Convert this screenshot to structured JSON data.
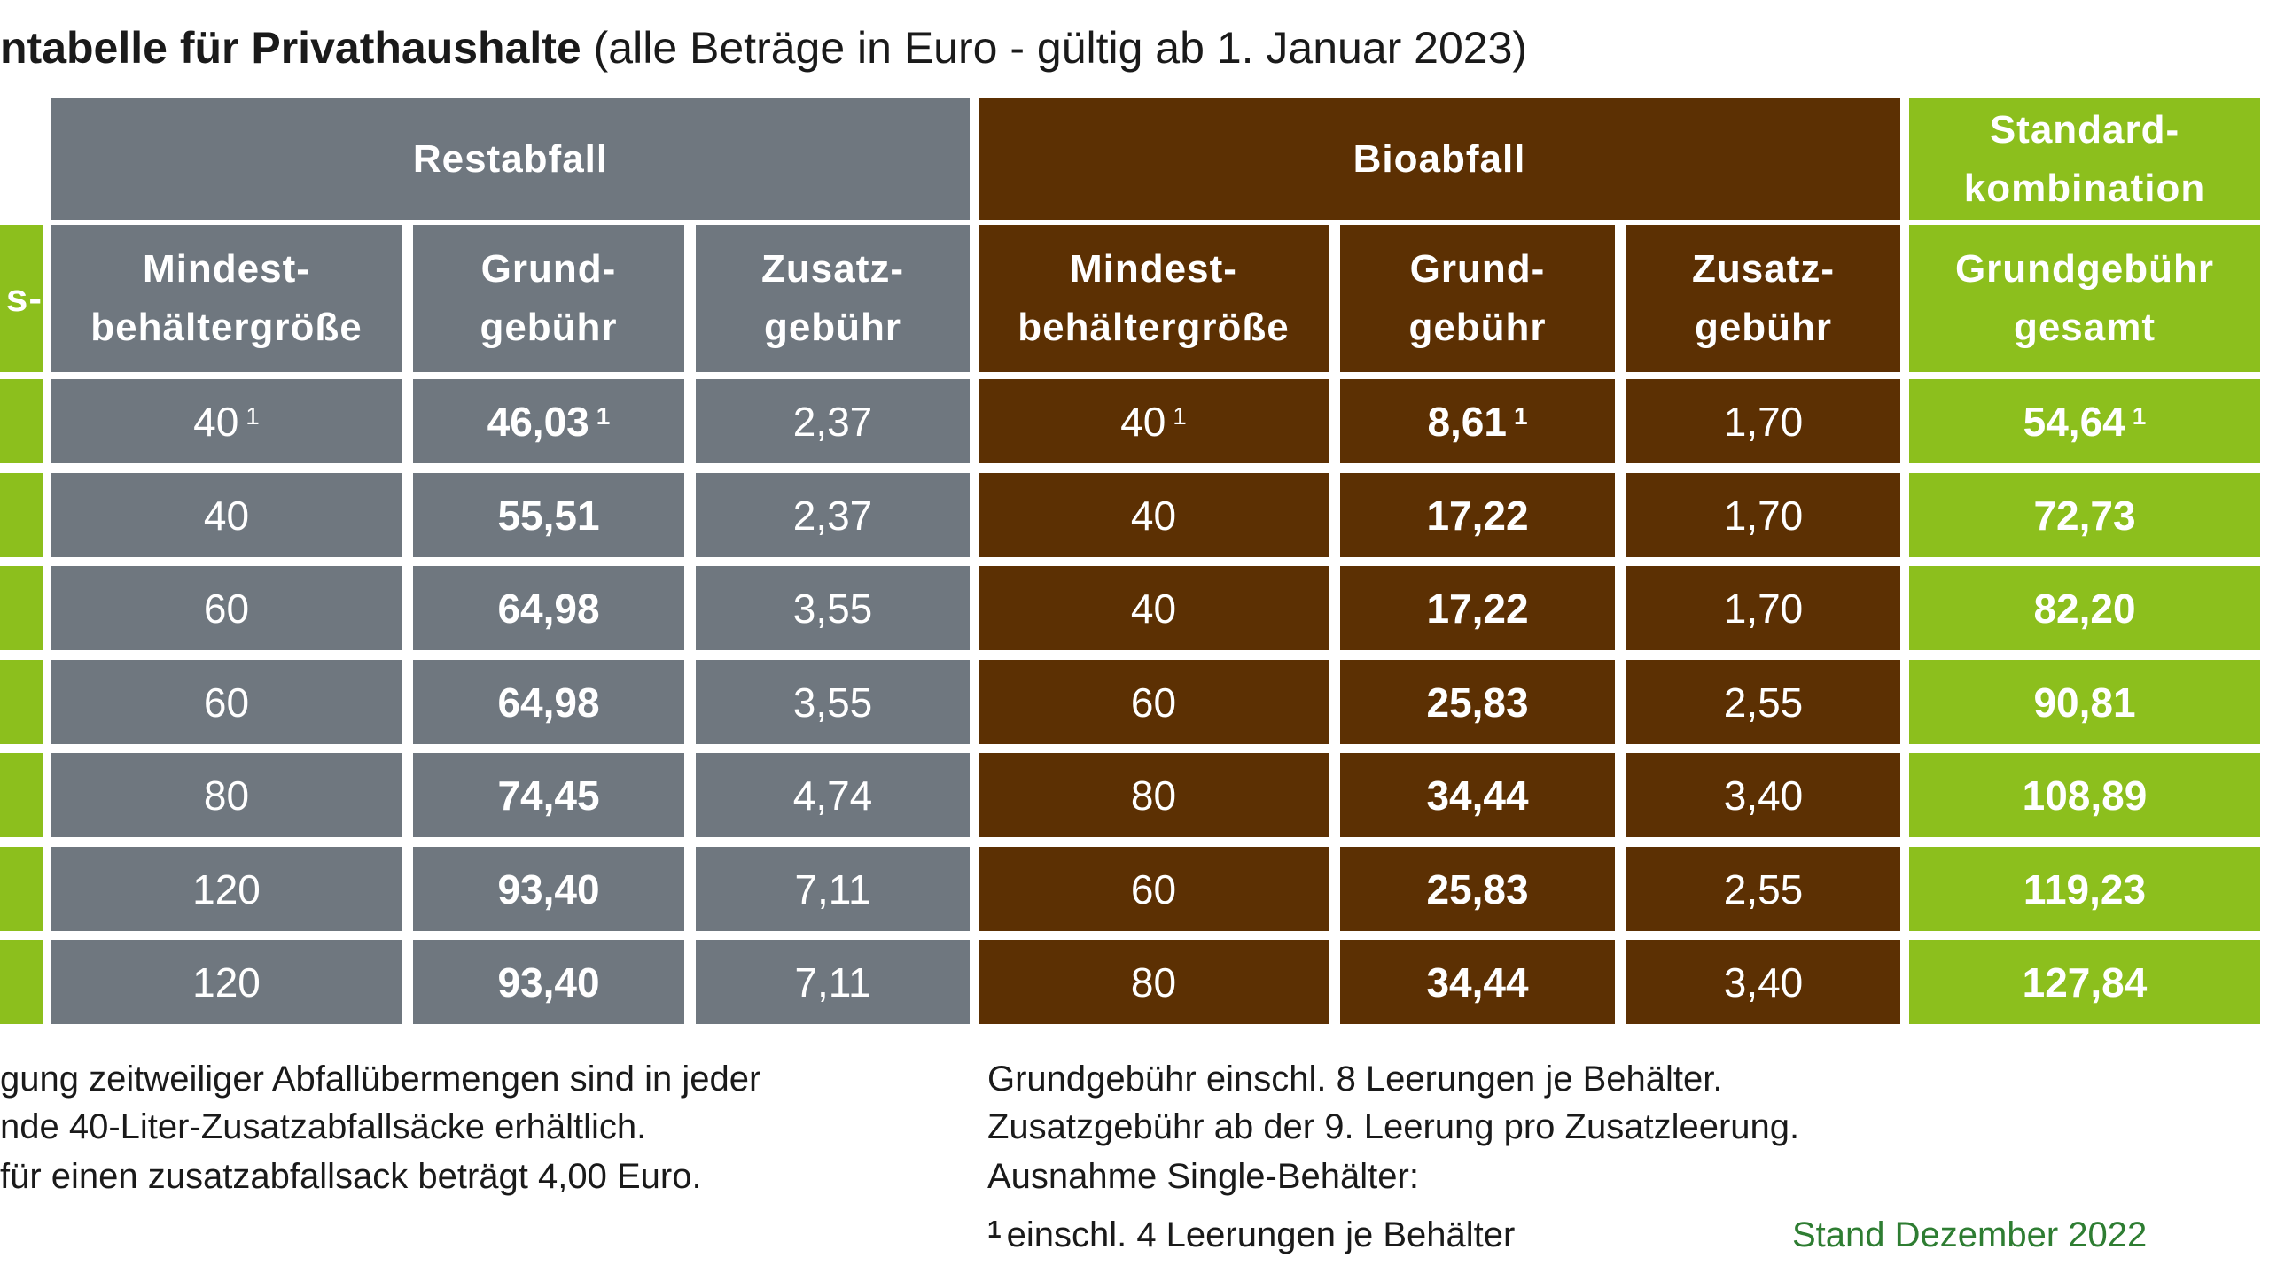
{
  "title": {
    "bold": "ntabelle für Privathaushalte",
    "normal": " (alle Beträge in Euro - gültig ab 1. Januar 2023)"
  },
  "groups": {
    "restabfall": "Restabfall",
    "bioabfall": "Bioabfall",
    "standard_line1": "Standard-",
    "standard_line2": "kombination"
  },
  "columns": {
    "left_partial": "s-",
    "rest_min_1": "Mindest-",
    "rest_min_2": "behältergröße",
    "rest_grund_1": "Grund-",
    "rest_grund_2": "gebühr",
    "rest_zus_1": "Zusatz-",
    "rest_zus_2": "gebühr",
    "bio_min_1": "Mindest-",
    "bio_min_2": "behältergröße",
    "bio_grund_1": "Grund-",
    "bio_grund_2": "gebühr",
    "bio_zus_1": "Zusatz-",
    "bio_zus_2": "gebühr",
    "std_1": "Grundgebühr",
    "std_2": "gesamt"
  },
  "rows": [
    {
      "rest_min": "40",
      "rest_min_sup": "1",
      "rest_grund": "46,03",
      "rest_grund_sup": "1",
      "rest_zus": "2,37",
      "bio_min": "40",
      "bio_min_sup": "1",
      "bio_grund": "8,61",
      "bio_grund_sup": "1",
      "bio_zus": "1,70",
      "std": "54,64",
      "std_sup": "1"
    },
    {
      "rest_min": "40",
      "rest_grund": "55,51",
      "rest_zus": "2,37",
      "bio_min": "40",
      "bio_grund": "17,22",
      "bio_zus": "1,70",
      "std": "72,73"
    },
    {
      "rest_min": "60",
      "rest_grund": "64,98",
      "rest_zus": "3,55",
      "bio_min": "40",
      "bio_grund": "17,22",
      "bio_zus": "1,70",
      "std": "82,20"
    },
    {
      "rest_min": "60",
      "rest_grund": "64,98",
      "rest_zus": "3,55",
      "bio_min": "60",
      "bio_grund": "25,83",
      "bio_zus": "2,55",
      "std": "90,81"
    },
    {
      "rest_min": "80",
      "rest_grund": "74,45",
      "rest_zus": "4,74",
      "bio_min": "80",
      "bio_grund": "34,44",
      "bio_zus": "3,40",
      "std": "108,89"
    },
    {
      "rest_min": "120",
      "rest_grund": "93,40",
      "rest_zus": "7,11",
      "bio_min": "60",
      "bio_grund": "25,83",
      "bio_zus": "2,55",
      "std": "119,23"
    },
    {
      "rest_min": "120",
      "rest_grund": "93,40",
      "rest_zus": "7,11",
      "bio_min": "80",
      "bio_grund": "34,44",
      "bio_zus": "3,40",
      "std": "127,84"
    }
  ],
  "notes_left": [
    "gung zeitweiliger Abfallübermengen sind in jeder",
    "nde 40-Liter-Zusatzabfallsäcke erhältlich.",
    " für einen zusatzabfallsack beträgt 4,00 Euro."
  ],
  "notes_right": [
    "Grundgebühr einschl. 8 Leerungen je Behälter.",
    "Zusatzgebühr ab der 9. Leerung pro Zusatzleerung.",
    "Ausnahme Single-Behälter:"
  ],
  "footnote_mark": "1",
  "footnote_text": "einschl. 4 Leerungen je Behälter",
  "stand": "Stand Dezember 2022",
  "colors": {
    "grey": "#6f777f",
    "brown": "#5c3003",
    "green": "#8cbf1d"
  }
}
